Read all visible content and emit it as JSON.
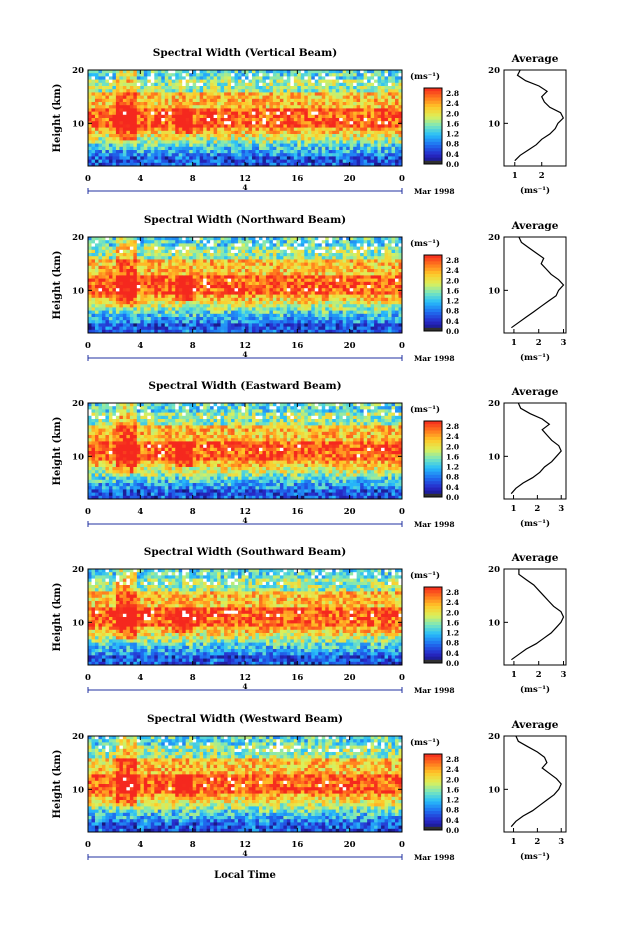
{
  "figure": {
    "xaxis_label": "Local Time",
    "date_label": "Mar 1998"
  },
  "chart_data": [
    {
      "type": "heatmap",
      "title": "Spectral Width (Vertical Beam)",
      "ylabel": "Height (km)",
      "xlabel": "Local Time",
      "x_ticks": [
        "0",
        "4",
        "8",
        "12",
        "16",
        "20",
        "0"
      ],
      "xlim": [
        0,
        24
      ],
      "y_ticks": [
        "20",
        "10"
      ],
      "ylim": [
        2,
        20
      ],
      "date_mark": "4",
      "date_label": "Mar 1998",
      "colorbar": {
        "unit": "(ms⁻¹)",
        "ticks": [
          "2.8",
          "2.4",
          "2.0",
          "1.6",
          "1.2",
          "0.8",
          "0.4",
          "0.0"
        ],
        "range": [
          0,
          3.0
        ]
      },
      "profile": {
        "title": "Average",
        "xlabel": "(ms⁻¹)",
        "x_ticks": [
          "1",
          "2"
        ],
        "xlim": [
          0.6,
          2.9
        ],
        "y_ticks": [
          "20",
          "10"
        ],
        "ylim": [
          2,
          20
        ],
        "points": [
          [
            1.0,
            3
          ],
          [
            1.2,
            4
          ],
          [
            1.5,
            5
          ],
          [
            1.8,
            6
          ],
          [
            2.0,
            7
          ],
          [
            2.3,
            8
          ],
          [
            2.5,
            9
          ],
          [
            2.6,
            10
          ],
          [
            2.8,
            11
          ],
          [
            2.7,
            12
          ],
          [
            2.3,
            13
          ],
          [
            2.1,
            14
          ],
          [
            2.0,
            15
          ],
          [
            2.2,
            16
          ],
          [
            1.9,
            17
          ],
          [
            1.4,
            18
          ],
          [
            1.1,
            19
          ],
          [
            1.2,
            20
          ]
        ]
      }
    },
    {
      "type": "heatmap",
      "title": "Spectral Width (Northward Beam)",
      "ylabel": "Height (km)",
      "xlabel": "Local Time",
      "x_ticks": [
        "0",
        "4",
        "8",
        "12",
        "16",
        "20",
        "0"
      ],
      "xlim": [
        0,
        24
      ],
      "y_ticks": [
        "20",
        "10"
      ],
      "ylim": [
        2,
        20
      ],
      "date_mark": "4",
      "date_label": "Mar 1998",
      "colorbar": {
        "unit": "(ms⁻¹)",
        "ticks": [
          "2.8",
          "2.4",
          "2.0",
          "1.6",
          "1.2",
          "0.8",
          "0.4",
          "0.0"
        ],
        "range": [
          0,
          3.0
        ]
      },
      "profile": {
        "title": "Average",
        "xlabel": "(ms⁻¹)",
        "x_ticks": [
          "1",
          "2",
          "3"
        ],
        "xlim": [
          0.6,
          3.1
        ],
        "y_ticks": [
          "20",
          "10"
        ],
        "ylim": [
          2,
          20
        ],
        "points": [
          [
            0.9,
            3
          ],
          [
            1.2,
            4
          ],
          [
            1.5,
            5
          ],
          [
            1.8,
            6
          ],
          [
            2.1,
            7
          ],
          [
            2.4,
            8
          ],
          [
            2.7,
            9
          ],
          [
            2.8,
            10
          ],
          [
            3.0,
            11
          ],
          [
            2.8,
            12
          ],
          [
            2.5,
            13
          ],
          [
            2.3,
            14
          ],
          [
            2.1,
            15
          ],
          [
            2.2,
            16
          ],
          [
            1.9,
            17
          ],
          [
            1.6,
            18
          ],
          [
            1.3,
            19
          ],
          [
            1.2,
            20
          ]
        ]
      }
    },
    {
      "type": "heatmap",
      "title": "Spectral Width (Eastward Beam)",
      "ylabel": "Height (km)",
      "xlabel": "Local Time",
      "x_ticks": [
        "0",
        "4",
        "8",
        "12",
        "16",
        "20",
        "0"
      ],
      "xlim": [
        0,
        24
      ],
      "y_ticks": [
        "20",
        "10"
      ],
      "ylim": [
        2,
        20
      ],
      "date_mark": "4",
      "date_label": "Mar 1998",
      "colorbar": {
        "unit": "(ms⁻¹)",
        "ticks": [
          "2.8",
          "2.4",
          "2.0",
          "1.6",
          "1.2",
          "0.8",
          "0.4",
          "0.0"
        ],
        "range": [
          0,
          3.0
        ]
      },
      "profile": {
        "title": "Average",
        "xlabel": "(ms⁻¹)",
        "x_ticks": [
          "1",
          "2",
          "3"
        ],
        "xlim": [
          0.6,
          3.2
        ],
        "y_ticks": [
          "20",
          "10"
        ],
        "ylim": [
          2,
          20
        ],
        "points": [
          [
            0.9,
            3
          ],
          [
            1.1,
            4
          ],
          [
            1.4,
            5
          ],
          [
            1.8,
            6
          ],
          [
            2.1,
            7
          ],
          [
            2.3,
            8
          ],
          [
            2.6,
            9
          ],
          [
            2.8,
            10
          ],
          [
            3.0,
            11
          ],
          [
            2.9,
            12
          ],
          [
            2.6,
            13
          ],
          [
            2.4,
            14
          ],
          [
            2.2,
            15
          ],
          [
            2.5,
            16
          ],
          [
            2.2,
            17
          ],
          [
            1.7,
            18
          ],
          [
            1.3,
            19
          ],
          [
            1.2,
            20
          ]
        ]
      }
    },
    {
      "type": "heatmap",
      "title": "Spectral Width (Southward Beam)",
      "ylabel": "Height (km)",
      "xlabel": "Local Time",
      "x_ticks": [
        "0",
        "4",
        "8",
        "12",
        "16",
        "20",
        "0"
      ],
      "xlim": [
        0,
        24
      ],
      "y_ticks": [
        "20",
        "10"
      ],
      "ylim": [
        2,
        20
      ],
      "date_mark": "4",
      "date_label": "Mar 1998",
      "colorbar": {
        "unit": "(ms⁻¹)",
        "ticks": [
          "2.8",
          "2.4",
          "2.0",
          "1.6",
          "1.2",
          "0.8",
          "0.4",
          "0.0"
        ],
        "range": [
          0,
          3.0
        ]
      },
      "profile": {
        "title": "Average",
        "xlabel": "(ms⁻¹)",
        "x_ticks": [
          "1",
          "2",
          "3"
        ],
        "xlim": [
          0.6,
          3.1
        ],
        "y_ticks": [
          "20",
          "10"
        ],
        "ylim": [
          2,
          20
        ],
        "points": [
          [
            0.9,
            3
          ],
          [
            1.2,
            4
          ],
          [
            1.5,
            5
          ],
          [
            1.9,
            6
          ],
          [
            2.2,
            7
          ],
          [
            2.5,
            8
          ],
          [
            2.7,
            9
          ],
          [
            2.9,
            10
          ],
          [
            3.0,
            11
          ],
          [
            2.9,
            12
          ],
          [
            2.6,
            13
          ],
          [
            2.4,
            14
          ],
          [
            2.2,
            15
          ],
          [
            2.0,
            16
          ],
          [
            1.8,
            17
          ],
          [
            1.5,
            18
          ],
          [
            1.2,
            19
          ],
          [
            1.2,
            20
          ]
        ]
      }
    },
    {
      "type": "heatmap",
      "title": "Spectral Width (Westward Beam)",
      "ylabel": "Height (km)",
      "xlabel": "Local Time",
      "x_ticks": [
        "0",
        "4",
        "8",
        "12",
        "16",
        "20",
        "0"
      ],
      "xlim": [
        0,
        24
      ],
      "y_ticks": [
        "20",
        "10"
      ],
      "ylim": [
        2,
        20
      ],
      "date_mark": "4",
      "date_label": "Mar 1998",
      "colorbar": {
        "unit": "(ms⁻¹)",
        "ticks": [
          "2.8",
          "2.4",
          "2.0",
          "1.6",
          "1.2",
          "0.8",
          "0.4",
          "0.0"
        ],
        "range": [
          0,
          3.0
        ]
      },
      "profile": {
        "title": "Average",
        "xlabel": "(ms⁻¹)",
        "x_ticks": [
          "1",
          "2",
          "3"
        ],
        "xlim": [
          0.6,
          3.2
        ],
        "y_ticks": [
          "20",
          "10"
        ],
        "ylim": [
          2,
          20
        ],
        "points": [
          [
            0.9,
            3
          ],
          [
            1.1,
            4
          ],
          [
            1.4,
            5
          ],
          [
            1.8,
            6
          ],
          [
            2.1,
            7
          ],
          [
            2.4,
            8
          ],
          [
            2.7,
            9
          ],
          [
            2.9,
            10
          ],
          [
            3.0,
            11
          ],
          [
            2.8,
            12
          ],
          [
            2.5,
            13
          ],
          [
            2.2,
            14
          ],
          [
            2.4,
            15
          ],
          [
            2.3,
            16
          ],
          [
            2.0,
            17
          ],
          [
            1.6,
            18
          ],
          [
            1.2,
            19
          ],
          [
            1.1,
            20
          ]
        ]
      }
    }
  ]
}
